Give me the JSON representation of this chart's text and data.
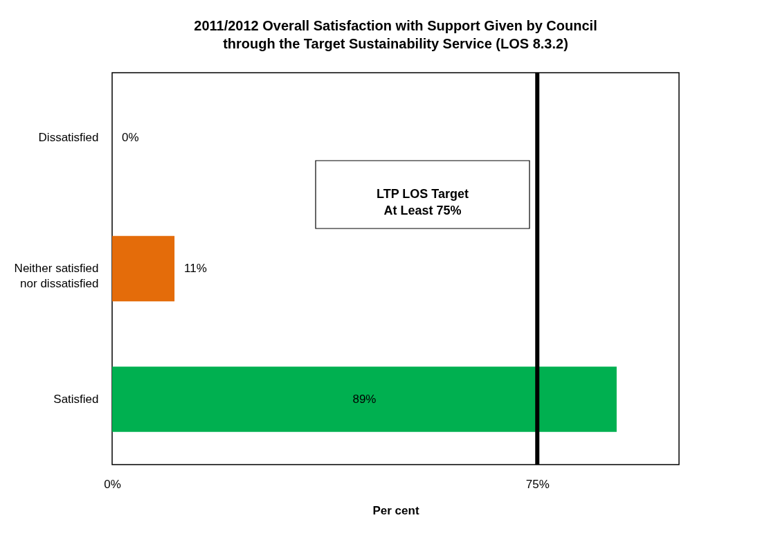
{
  "chart_data": {
    "type": "bar",
    "orientation": "horizontal",
    "title": "2011/2012 Overall Satisfaction with Support Given by Council through the Target Sustainability Service (LOS 8.3.2)",
    "xlabel": "Per cent",
    "categories": [
      "Dissatisfied",
      "Neither satisfied nor dissatisfied",
      "Satisfied"
    ],
    "values": [
      0,
      11,
      89
    ],
    "colors": [
      "#ff0000",
      "#e46c0a",
      "#00b050"
    ],
    "value_labels": [
      "0%",
      "11%",
      "89%"
    ],
    "xlim": [
      0,
      100
    ],
    "xticks": [
      {
        "value": 0,
        "label": "0%"
      },
      {
        "value": 75,
        "label": "75%"
      }
    ],
    "ref_lines": [
      {
        "axis": "x",
        "value": 75,
        "label": "LTP LOS Target At Least 75%",
        "color": "#000000",
        "line_style": "solid"
      }
    ],
    "legend": false
  }
}
